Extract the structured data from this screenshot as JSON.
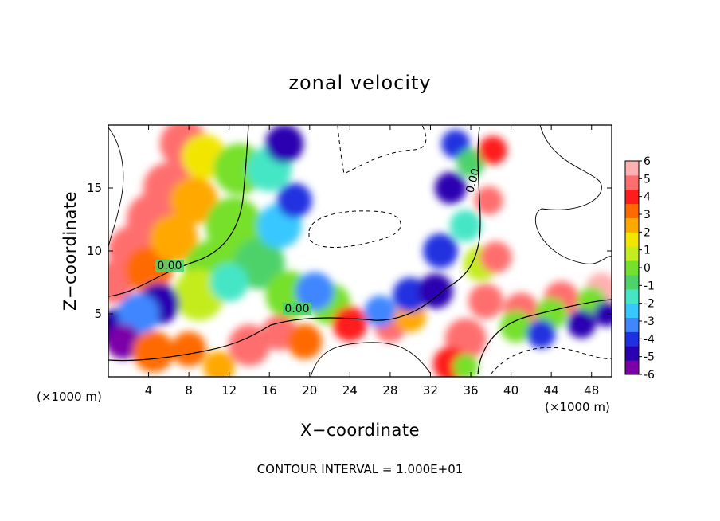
{
  "chart_data": {
    "type": "heatmap",
    "title": "zonal velocity",
    "xlabel": "X−coordinate",
    "ylabel": "Z−coordinate",
    "x_unit": "(×1000 m)",
    "y_unit": "(×1000 m)",
    "xlim": [
      0,
      50
    ],
    "ylim": [
      0,
      20
    ],
    "x_ticks": [
      4,
      8,
      12,
      16,
      20,
      24,
      28,
      32,
      36,
      40,
      44,
      48
    ],
    "y_ticks": [
      5,
      10,
      15
    ],
    "colorbar": {
      "min": -6,
      "max": 6,
      "ticks": [
        6,
        5,
        4,
        3,
        2,
        1,
        0,
        -1,
        -2,
        -3,
        -4,
        -5,
        -6
      ],
      "colors": [
        "#7b00a8",
        "#2a00b0",
        "#2030e0",
        "#3f86ff",
        "#38c8ff",
        "#44e6c6",
        "#4ed26a",
        "#76e02c",
        "#c4ec1e",
        "#f2e600",
        "#ffa800",
        "#ff6a00",
        "#ff1c1c",
        "#ff6e6e",
        "#ffb0b0"
      ]
    },
    "contour_labels": [
      "0.00",
      "0.00",
      "0.00"
    ],
    "footer": "CONTOUR INTERVAL = 1.000E+01"
  }
}
